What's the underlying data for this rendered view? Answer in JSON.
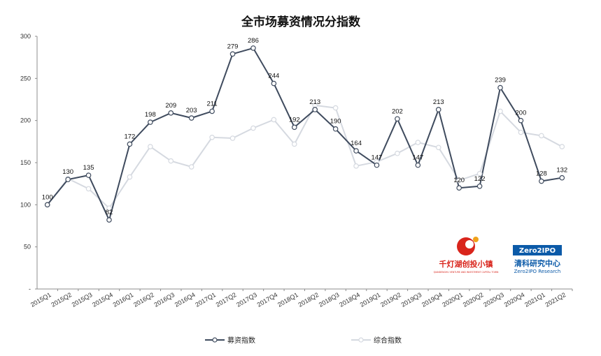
{
  "chart_data": {
    "type": "line",
    "title": "全市场募资情况分指数",
    "categories": [
      "2015Q1",
      "2015Q2",
      "2015Q3",
      "2015Q4",
      "2016Q1",
      "2016Q2",
      "2016Q3",
      "2016Q4",
      "2017Q1",
      "2017Q2",
      "2017Q3",
      "2017Q4",
      "2018Q1",
      "2018Q2",
      "2018Q3",
      "2018Q4",
      "2019Q1",
      "2019Q2",
      "2019Q3",
      "2019Q4",
      "2020Q1",
      "2020Q2",
      "2020Q3",
      "2020Q4",
      "2021Q1",
      "2021Q2"
    ],
    "series": [
      {
        "name": "募资指数",
        "color": "#3f4b5e",
        "values": [
          100,
          130,
          135,
          82,
          172,
          198,
          209,
          203,
          211,
          279,
          286,
          244,
          192,
          213,
          190,
          164,
          147,
          202,
          147,
          213,
          120,
          122,
          239,
          200,
          128,
          132
        ],
        "labels": [
          "100",
          "130",
          "135",
          "82",
          "172",
          "198",
          "209",
          "203",
          "211",
          "279",
          "286",
          "244",
          "192",
          "213",
          "190",
          "164",
          "147",
          "202",
          "147",
          "213",
          "120",
          "122",
          "239",
          "200",
          "128",
          "132"
        ]
      },
      {
        "name": "综合指数",
        "color": "#d5d9e0",
        "values": [
          100,
          131,
          119,
          96,
          133,
          169,
          152,
          145,
          180,
          179,
          191,
          201,
          172,
          218,
          215,
          146,
          151,
          161,
          174,
          168,
          129,
          137,
          211,
          186,
          182,
          169
        ]
      }
    ],
    "ylim": [
      0,
      300
    ],
    "yticks": [
      "-",
      "50",
      "100",
      "150",
      "200",
      "250",
      "300"
    ],
    "legend_position": "bottom",
    "grid": false
  },
  "logos": {
    "qdh": {
      "text": "千灯湖创投小镇",
      "subtext": "QIANDENGHU VENTURE AND INVESTMENT CAPITAL TOWN",
      "color": "#d9251c"
    },
    "zero2ipo": {
      "brand": "Zero2IPO",
      "text": "清科研究中心",
      "subtext": "Zero2IPO Research",
      "color": "#0b5aa8"
    }
  }
}
